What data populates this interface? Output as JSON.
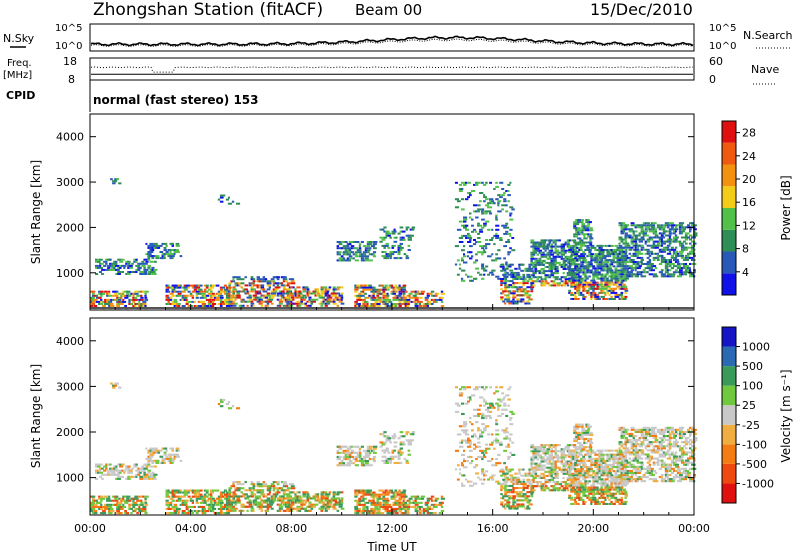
{
  "header": {
    "station_title": "Zhongshan Station (fitACF)",
    "beam": "Beam 00",
    "date": "15/Dec/2010"
  },
  "strips": {
    "nsky_label": "N.Sky",
    "nsky_top": "10^5",
    "nsky_bottom": "10^0",
    "nsearch_label": "N.Search",
    "nsearch_top": "10^5",
    "nsearch_bottom": "10^0",
    "freq_label_1": "Freq.",
    "freq_label_2": "[MHz]",
    "freq_top": "18",
    "freq_bottom": "8",
    "nave_label": "Nave",
    "nave_top": "60",
    "nave_bottom": "0",
    "cpid_label": "CPID",
    "cpid_text": "normal (fast stereo) 153"
  },
  "colors": {
    "power_scale": [
      "#1010e8",
      "#2858b8",
      "#2f8e55",
      "#52c14a",
      "#f3cc18",
      "#f39110",
      "#f05a10",
      "#e01010"
    ],
    "velocity_scale": [
      "#e01010",
      "#ee4a10",
      "#f37d12",
      "#f0ad40",
      "#c8c8c8",
      "#6fc83e",
      "#3a9a5a",
      "#2a6ab3",
      "#1515c5"
    ]
  },
  "chart_data": [
    {
      "type": "heatmap",
      "panel": "power",
      "ylabel": "Slant Range [km]",
      "ylim": [
        180,
        4500
      ],
      "y_ticks": [
        "1000",
        "2000",
        "3000",
        "4000"
      ],
      "xlim": [
        "00:00",
        "24:00"
      ],
      "colorbar_label": "Power [dB]",
      "colorbar_ticks": [
        "4",
        "8",
        "12",
        "16",
        "20",
        "24",
        "28"
      ],
      "colorbar_range": [
        0,
        30
      ]
    },
    {
      "type": "heatmap",
      "panel": "velocity",
      "ylabel": "Slant Range [km]",
      "ylim": [
        180,
        4500
      ],
      "y_ticks": [
        "1000",
        "2000",
        "3000",
        "4000"
      ],
      "xlabel": "Time UT",
      "x_ticks": [
        "00:00",
        "04:00",
        "08:00",
        "12:00",
        "16:00",
        "20:00",
        "00:00"
      ],
      "colorbar_label": "Velocity [m s⁻¹]",
      "colorbar_ticks": [
        "-1000",
        "-500",
        "-100",
        "-25",
        "25",
        "100",
        "500",
        "1000"
      ]
    }
  ]
}
